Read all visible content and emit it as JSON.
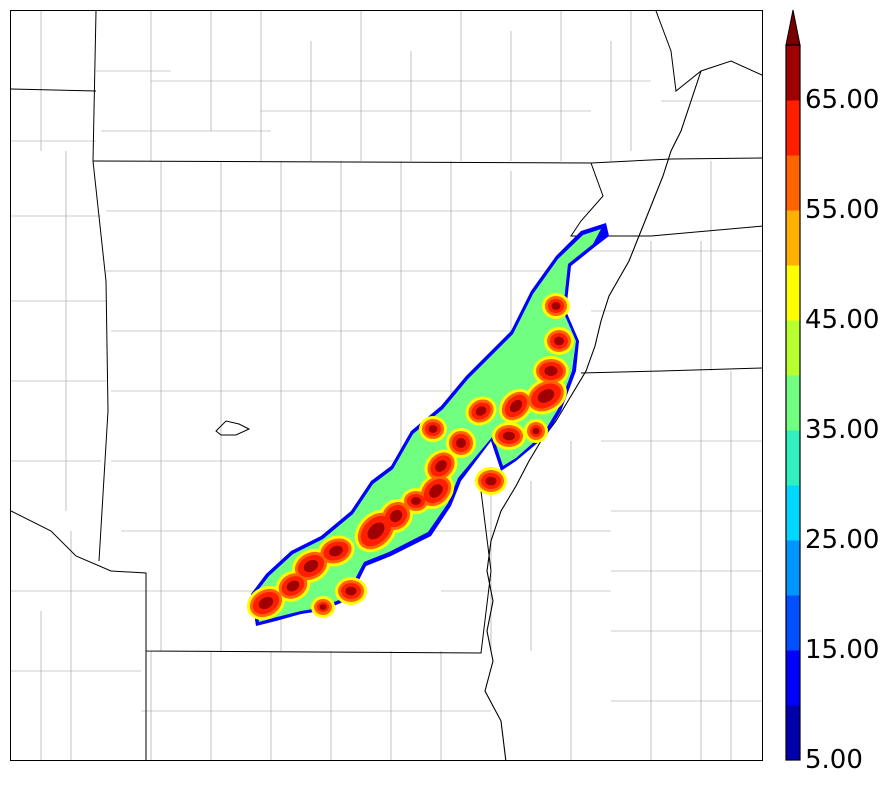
{
  "map": {
    "layer": "reflectivity contours",
    "basemap": [
      "state boundaries",
      "county boundaries",
      "river"
    ]
  },
  "colorbar": {
    "extend": "max",
    "ticks": [
      {
        "label": "5.00",
        "value": 5
      },
      {
        "label": "15.00",
        "value": 15
      },
      {
        "label": "25.00",
        "value": 25
      },
      {
        "label": "35.00",
        "value": 35
      },
      {
        "label": "45.00",
        "value": 45
      },
      {
        "label": "55.00",
        "value": 55
      },
      {
        "label": "65.00",
        "value": 65
      }
    ],
    "levels": [
      5,
      10,
      15,
      20,
      25,
      30,
      35,
      40,
      45,
      50,
      55,
      60,
      65,
      70
    ],
    "colors": [
      "#0000aa",
      "#0000ff",
      "#0050ff",
      "#0096ff",
      "#00d8ff",
      "#30f0c0",
      "#70ff80",
      "#b8ff30",
      "#ffff00",
      "#ffb000",
      "#ff6400",
      "#ff1e00",
      "#a00000",
      "#7a0000"
    ]
  }
}
